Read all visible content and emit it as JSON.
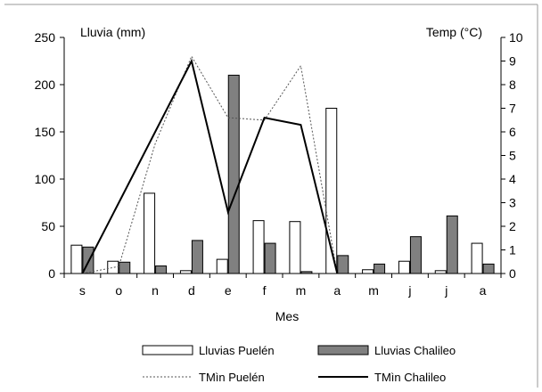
{
  "chart_data": {
    "type": "bar",
    "categories": [
      "s",
      "o",
      "n",
      "d",
      "e",
      "f",
      "m",
      "a",
      "m",
      "j",
      "j",
      "a"
    ],
    "xlabel": "Mes",
    "ylabel": "Lluvia (mm)",
    "y2label": "Temp  (°C)",
    "ylim": [
      0,
      250
    ],
    "y2lim": [
      0,
      10
    ],
    "yticks": [
      "0",
      "50",
      "100",
      "150",
      "200",
      "250"
    ],
    "y2ticks": [
      "0",
      "1",
      "2",
      "3",
      "4",
      "5",
      "6",
      "7",
      "8",
      "9",
      "10"
    ],
    "grid": false,
    "legend_position": "bottom",
    "bar_series": [
      {
        "name": "Lluvias Puelén",
        "color": "#ffffff",
        "values": [
          30,
          13,
          85,
          3,
          15,
          56,
          55,
          175,
          4,
          13,
          3,
          32
        ]
      },
      {
        "name": "Lluvias Chalileo",
        "color": "#808080",
        "values": [
          28,
          12,
          8,
          35,
          210,
          32,
          2,
          19,
          10,
          39,
          61,
          10
        ]
      }
    ],
    "line_series": [
      {
        "name": "TMìn Puelén",
        "color": "#555555",
        "dash": true,
        "values": [
          0.0,
          0.3,
          5.5,
          9.2,
          6.6,
          6.5,
          8.8,
          0.0,
          null,
          null,
          null,
          null
        ]
      },
      {
        "name": "TMìn Chalileo",
        "color": "#000000",
        "dash": false,
        "values": [
          0.0,
          3.0,
          6.0,
          9.0,
          2.6,
          6.6,
          6.3,
          0.0,
          null,
          null,
          null,
          null
        ]
      }
    ]
  }
}
